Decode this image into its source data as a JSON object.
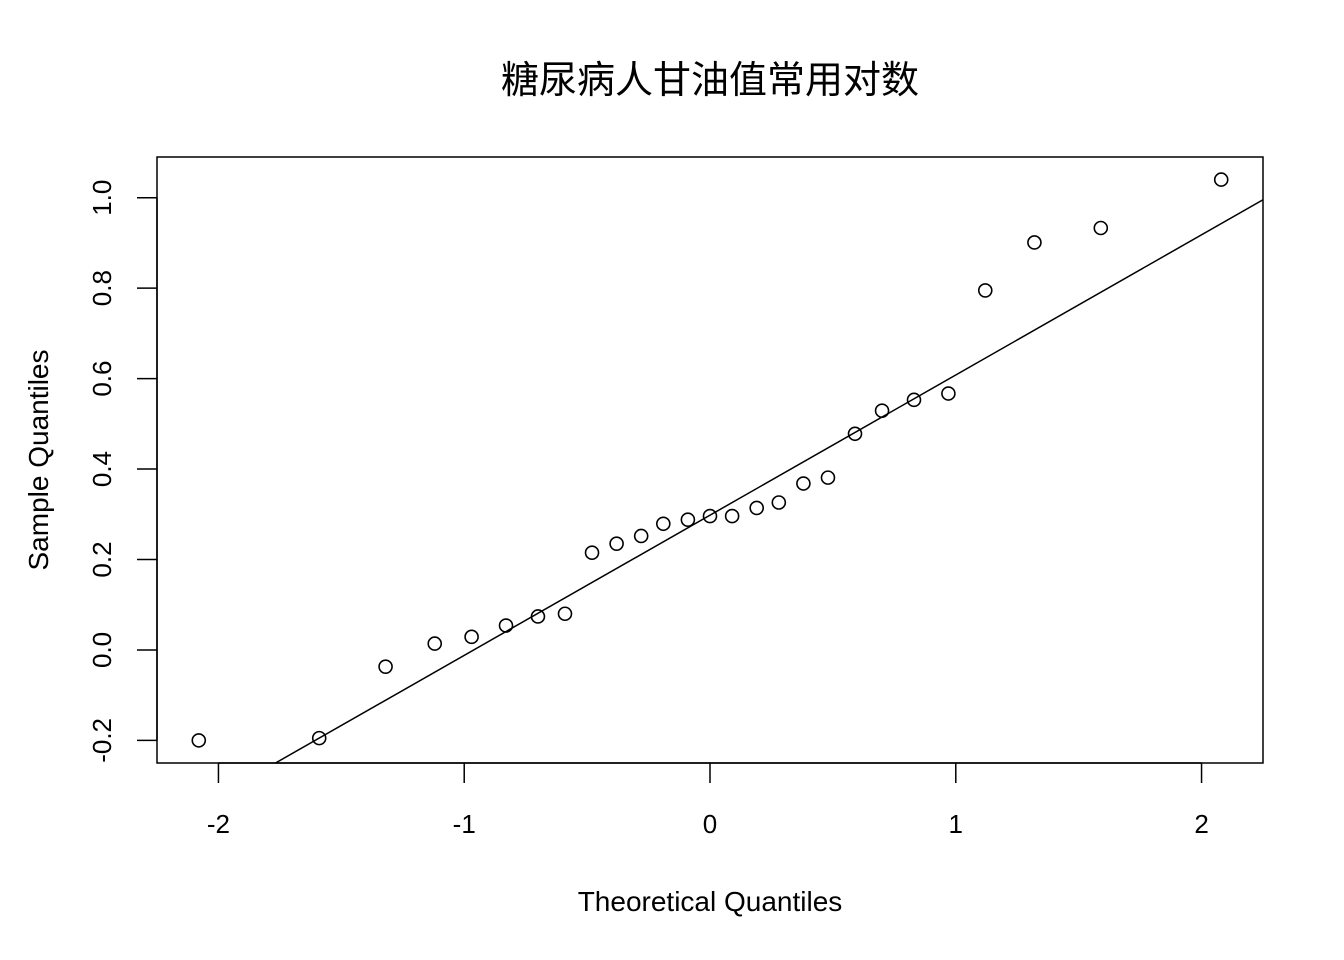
{
  "chart_data": {
    "type": "scatter",
    "title": "糖尿病人甘油值常用对数",
    "xlabel": "Theoretical Quantiles",
    "ylabel": "Sample Quantiles",
    "xlim": [
      -2.25,
      2.25
    ],
    "ylim": [
      -0.25,
      1.09
    ],
    "x_ticks": [
      -2,
      -1,
      0,
      1,
      2
    ],
    "x_tick_labels": [
      "-2",
      "-1",
      "0",
      "1",
      "2"
    ],
    "y_ticks": [
      -0.2,
      0.0,
      0.2,
      0.4,
      0.6,
      0.8,
      1.0
    ],
    "y_tick_labels": [
      "-0.2",
      "0.0",
      "0.2",
      "0.4",
      "0.6",
      "0.8",
      "1.0"
    ],
    "grid": false,
    "legend": "none",
    "series": [
      {
        "marker": "open-circle",
        "points": [
          {
            "x": -2.08,
            "y": -0.2
          },
          {
            "x": -1.59,
            "y": -0.195
          },
          {
            "x": -1.32,
            "y": -0.037
          },
          {
            "x": -1.12,
            "y": 0.014
          },
          {
            "x": -0.97,
            "y": 0.029
          },
          {
            "x": -0.83,
            "y": 0.054
          },
          {
            "x": -0.7,
            "y": 0.074
          },
          {
            "x": -0.59,
            "y": 0.08
          },
          {
            "x": -0.48,
            "y": 0.215
          },
          {
            "x": -0.38,
            "y": 0.235
          },
          {
            "x": -0.28,
            "y": 0.252
          },
          {
            "x": -0.19,
            "y": 0.279
          },
          {
            "x": -0.09,
            "y": 0.288
          },
          {
            "x": 0.0,
            "y": 0.296
          },
          {
            "x": 0.09,
            "y": 0.296
          },
          {
            "x": 0.19,
            "y": 0.314
          },
          {
            "x": 0.28,
            "y": 0.326
          },
          {
            "x": 0.38,
            "y": 0.368
          },
          {
            "x": 0.48,
            "y": 0.381
          },
          {
            "x": 0.59,
            "y": 0.478
          },
          {
            "x": 0.7,
            "y": 0.529
          },
          {
            "x": 0.83,
            "y": 0.553
          },
          {
            "x": 0.97,
            "y": 0.567
          },
          {
            "x": 1.12,
            "y": 0.795
          },
          {
            "x": 1.32,
            "y": 0.901
          },
          {
            "x": 1.59,
            "y": 0.933
          },
          {
            "x": 2.08,
            "y": 1.04
          }
        ]
      }
    ],
    "reference_line": {
      "intercept": 0.298,
      "slope": 0.31
    },
    "colors": {
      "points": "#000000",
      "line": "#000000",
      "axes": "#000000"
    }
  }
}
